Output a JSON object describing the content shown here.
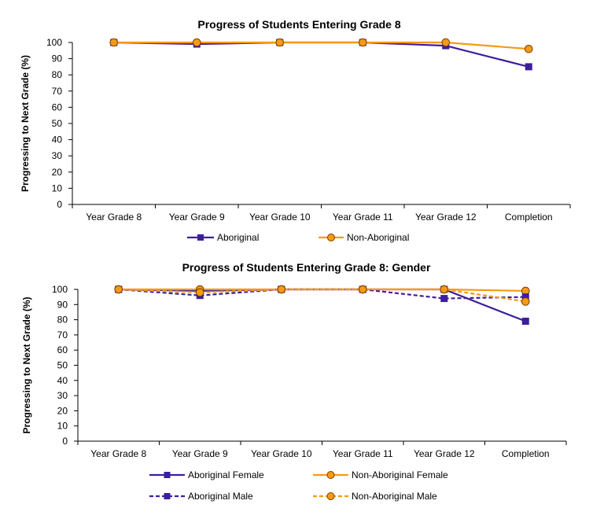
{
  "chart_data": [
    {
      "type": "line",
      "title": "Progress of Students Entering Grade 8",
      "xlabel": "",
      "ylabel": "Progressing to Next Grade (%)",
      "ylim": [
        0,
        100
      ],
      "yticks": [
        0,
        10,
        20,
        30,
        40,
        50,
        60,
        70,
        80,
        90,
        100
      ],
      "grid": false,
      "legend_position": "bottom",
      "categories": [
        "Year Grade 8",
        "Year Grade 9",
        "Year Grade 10",
        "Year Grade 11",
        "Year Grade 12",
        "Completion"
      ],
      "series": [
        {
          "name": "Aboriginal",
          "values": [
            100,
            99,
            100,
            100,
            98,
            85
          ],
          "color": "#3d1f9c",
          "dash": false,
          "marker": "square"
        },
        {
          "name": "Non-Aboriginal",
          "values": [
            100,
            100,
            100,
            100,
            100,
            96
          ],
          "color": "#f59a14",
          "dash": false,
          "marker": "circle"
        }
      ]
    },
    {
      "type": "line",
      "title": "Progress of Students Entering Grade 8: Gender",
      "xlabel": "",
      "ylabel": "Progressing to Next Grade (%)",
      "ylim": [
        0,
        100
      ],
      "yticks": [
        0,
        10,
        20,
        30,
        40,
        50,
        60,
        70,
        80,
        90,
        100
      ],
      "grid": false,
      "legend_position": "bottom",
      "categories": [
        "Year Grade 8",
        "Year Grade 9",
        "Year Grade 10",
        "Year Grade 11",
        "Year Grade 12",
        "Completion"
      ],
      "series": [
        {
          "name": "Aboriginal Female",
          "values": [
            100,
            99,
            100,
            100,
            100,
            79
          ],
          "color": "#3d1f9c",
          "dash": false,
          "marker": "square"
        },
        {
          "name": "Non-Aboriginal Female",
          "values": [
            100,
            100,
            100,
            100,
            100,
            99
          ],
          "color": "#f59a14",
          "dash": false,
          "marker": "circle"
        },
        {
          "name": "Aboriginal Male",
          "values": [
            100,
            96,
            100,
            100,
            94,
            95
          ],
          "color": "#3d1f9c",
          "dash": true,
          "marker": "square"
        },
        {
          "name": "Non-Aboriginal Male",
          "values": [
            100,
            98,
            100,
            100,
            100,
            92
          ],
          "color": "#f59a14",
          "dash": true,
          "marker": "circle"
        }
      ]
    }
  ]
}
